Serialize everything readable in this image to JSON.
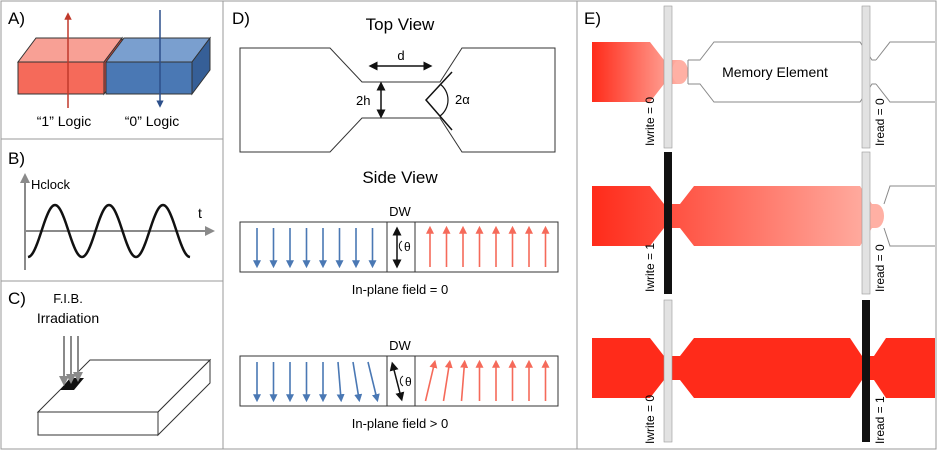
{
  "panels": {
    "a": {
      "label": "A)",
      "logic_one": "“1” Logic",
      "logic_zero": "“0” Logic",
      "colors": {
        "up": "#f56a5a",
        "down": "#4a78b4"
      }
    },
    "b": {
      "label": "B)",
      "signal": "Hclock",
      "time_axis": "t"
    },
    "c": {
      "label": "C)",
      "beam_line1": "F.I.B.",
      "beam_line2": "Irradiation"
    },
    "d": {
      "label": "D)",
      "top_view_title": "Top View",
      "width_label": "d",
      "height_label": "2h",
      "angle_label": "2α",
      "side_view_title": "Side View",
      "dw1": "DW",
      "theta1": "θ",
      "caption1": "In-plane field = 0",
      "dw2": "DW",
      "theta2": "θ",
      "caption2": "In-plane field > 0",
      "colors": {
        "down": "#4a78b4",
        "up": "#f56a5a"
      }
    },
    "e": {
      "label": "E)",
      "memory_element": "Memory Element",
      "rows": [
        {
          "write_label": "Iwrite = 0",
          "read_label": "Iread = 0",
          "write_on": false,
          "read_on": false
        },
        {
          "write_label": "Iwrite = 1",
          "read_label": "Iread = 0",
          "write_on": true,
          "read_on": false
        },
        {
          "write_label": "Iwrite = 0",
          "read_label": "Iread = 1",
          "write_on": false,
          "read_on": true
        }
      ],
      "colors": {
        "domain": "#ff2b1a",
        "line_on": "#111111",
        "line_off": "#e2e2e2"
      }
    }
  }
}
